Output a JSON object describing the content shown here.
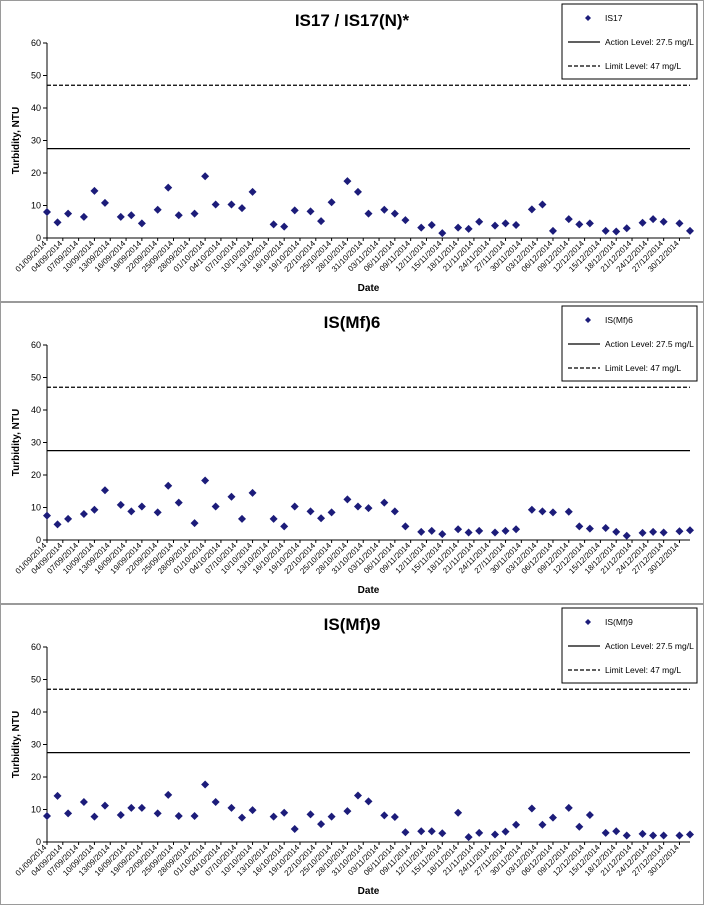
{
  "colors": {
    "marker": "#1c1c7a",
    "line": "#000000"
  },
  "chart_data": [
    {
      "type": "scatter",
      "title": "IS17 / IS17(N)*",
      "xlabel": "Date",
      "ylabel": "Turbidity, NTU",
      "ylim": [
        0,
        60
      ],
      "yticks": [
        0,
        10,
        20,
        30,
        40,
        50,
        60
      ],
      "grid": false,
      "legend_position": "top-right",
      "x_tick_labels": [
        "01/09/2014",
        "04/09/2014",
        "07/09/2014",
        "10/09/2014",
        "13/09/2014",
        "16/09/2014",
        "19/09/2014",
        "22/09/2014",
        "25/09/2014",
        "28/09/2014",
        "01/10/2014",
        "04/10/2014",
        "07/10/2014",
        "10/10/2014",
        "13/10/2014",
        "16/10/2014",
        "19/10/2014",
        "22/10/2014",
        "25/10/2014",
        "28/10/2014",
        "31/10/2014",
        "03/11/2014",
        "06/11/2014",
        "09/11/2014",
        "12/11/2014",
        "15/11/2014",
        "18/11/2014",
        "21/11/2014",
        "24/11/2014",
        "27/11/2014",
        "30/11/2014",
        "03/12/2014",
        "06/12/2014",
        "09/12/2014",
        "12/12/2014",
        "15/12/2014",
        "18/12/2014",
        "21/12/2014",
        "24/12/2014",
        "27/12/2014",
        "30/12/2014"
      ],
      "series": [
        {
          "name": "IS17",
          "x": [
            "01/09/2014",
            "03/09/2014",
            "05/09/2014",
            "08/09/2014",
            "10/09/2014",
            "12/09/2014",
            "15/09/2014",
            "17/09/2014",
            "19/09/2014",
            "22/09/2014",
            "24/09/2014",
            "26/09/2014",
            "29/09/2014",
            "01/10/2014",
            "03/10/2014",
            "06/10/2014",
            "08/10/2014",
            "10/10/2014",
            "14/10/2014",
            "16/10/2014",
            "18/10/2014",
            "21/10/2014",
            "23/10/2014",
            "25/10/2014",
            "28/10/2014",
            "30/10/2014",
            "01/11/2014",
            "04/11/2014",
            "06/11/2014",
            "08/11/2014",
            "11/11/2014",
            "13/11/2014",
            "15/11/2014",
            "18/11/2014",
            "20/11/2014",
            "22/11/2014",
            "25/11/2014",
            "27/11/2014",
            "29/11/2014",
            "02/12/2014",
            "04/12/2014",
            "06/12/2014",
            "09/12/2014",
            "11/12/2014",
            "13/12/2014",
            "16/12/2014",
            "18/12/2014",
            "20/12/2014",
            "23/12/2014",
            "25/12/2014",
            "27/12/2014",
            "30/12/2014",
            "01/01/2015"
          ],
          "y": [
            8,
            4.8,
            7.5,
            6.5,
            14.5,
            10.8,
            6.5,
            7,
            4.5,
            8.7,
            15.5,
            7,
            7.5,
            19,
            10.3,
            10.3,
            9.2,
            14.2,
            4.2,
            3.5,
            8.5,
            8.2,
            5.2,
            11,
            17.5,
            14.2,
            7.5,
            8.7,
            7.5,
            5.5,
            3.2,
            4,
            1.5,
            3.2,
            2.8,
            5,
            3.8,
            4.5,
            4,
            8.8,
            10.3,
            2.2,
            5.8,
            4.2,
            4.5,
            2.2,
            2,
            3,
            4.7,
            5.8,
            5,
            4.5,
            2.2
          ]
        }
      ],
      "reference_lines": [
        {
          "name": "Action Level: 27.5 mg/L",
          "y": 27.5,
          "style": "solid"
        },
        {
          "name": "Limit Level: 47 mg/L",
          "y": 47,
          "style": "dashed"
        }
      ]
    },
    {
      "type": "scatter",
      "title": "IS(Mf)6",
      "xlabel": "Date",
      "ylabel": "Turbidity, NTU",
      "ylim": [
        0,
        60
      ],
      "yticks": [
        0,
        10,
        20,
        30,
        40,
        50,
        60
      ],
      "grid": false,
      "legend_position": "top-right",
      "x_tick_labels": [
        "01/09/2014",
        "04/09/2014",
        "07/09/2014",
        "10/09/2014",
        "13/09/2014",
        "16/09/2014",
        "19/09/2014",
        "22/09/2014",
        "25/09/2014",
        "28/09/2014",
        "01/10/2014",
        "04/10/2014",
        "07/10/2014",
        "10/10/2014",
        "13/10/2014",
        "16/10/2014",
        "19/10/2014",
        "22/10/2014",
        "25/10/2014",
        "28/10/2014",
        "31/10/2014",
        "03/11/2014",
        "06/11/2014",
        "09/11/2014",
        "12/11/2014",
        "15/11/2014",
        "18/11/2014",
        "21/11/2014",
        "24/11/2014",
        "27/11/2014",
        "30/11/2014",
        "03/12/2014",
        "06/12/2014",
        "09/12/2014",
        "12/12/2014",
        "15/12/2014",
        "18/12/2014",
        "21/12/2014",
        "24/12/2014",
        "27/12/2014",
        "30/12/2014"
      ],
      "series": [
        {
          "name": "IS(Mf)6",
          "x": [
            "01/09/2014",
            "03/09/2014",
            "05/09/2014",
            "08/09/2014",
            "10/09/2014",
            "12/09/2014",
            "15/09/2014",
            "17/09/2014",
            "19/09/2014",
            "22/09/2014",
            "24/09/2014",
            "26/09/2014",
            "29/09/2014",
            "01/10/2014",
            "03/10/2014",
            "06/10/2014",
            "08/10/2014",
            "10/10/2014",
            "14/10/2014",
            "16/10/2014",
            "18/10/2014",
            "21/10/2014",
            "23/10/2014",
            "25/10/2014",
            "28/10/2014",
            "30/10/2014",
            "01/11/2014",
            "04/11/2014",
            "06/11/2014",
            "08/11/2014",
            "11/11/2014",
            "13/11/2014",
            "15/11/2014",
            "18/11/2014",
            "20/11/2014",
            "22/11/2014",
            "25/11/2014",
            "27/11/2014",
            "29/11/2014",
            "02/12/2014",
            "04/12/2014",
            "06/12/2014",
            "09/12/2014",
            "11/12/2014",
            "13/12/2014",
            "16/12/2014",
            "18/12/2014",
            "20/12/2014",
            "23/12/2014",
            "25/12/2014",
            "27/12/2014",
            "30/12/2014",
            "01/01/2015"
          ],
          "y": [
            7.5,
            4.8,
            6.5,
            8,
            9.3,
            15.3,
            10.8,
            8.8,
            10.3,
            8.5,
            16.7,
            11.5,
            5.2,
            18.3,
            10.3,
            13.3,
            6.5,
            14.5,
            6.5,
            4.2,
            10.3,
            8.8,
            6.7,
            8.5,
            12.5,
            10.3,
            9.8,
            11.5,
            8.8,
            4.2,
            2.5,
            2.8,
            1.8,
            3.3,
            2.3,
            2.8,
            2.3,
            2.8,
            3.3,
            9.3,
            8.8,
            8.5,
            8.7,
            4.2,
            3.5,
            3.7,
            2.5,
            1.3,
            2.2,
            2.5,
            2.3,
            2.7,
            3
          ]
        }
      ],
      "reference_lines": [
        {
          "name": "Action Level: 27.5 mg/L",
          "y": 27.5,
          "style": "solid"
        },
        {
          "name": "Limit Level: 47 mg/L",
          "y": 47,
          "style": "dashed"
        }
      ]
    },
    {
      "type": "scatter",
      "title": "IS(Mf)9",
      "xlabel": "Date",
      "ylabel": "Turbidity, NTU",
      "ylim": [
        0,
        60
      ],
      "yticks": [
        0,
        10,
        20,
        30,
        40,
        50,
        60
      ],
      "grid": false,
      "legend_position": "top-right",
      "x_tick_labels": [
        "01/09/2014",
        "04/09/2014",
        "07/09/2014",
        "10/09/2014",
        "13/09/2014",
        "16/09/2014",
        "19/09/2014",
        "22/09/2014",
        "25/09/2014",
        "28/09/2014",
        "01/10/2014",
        "04/10/2014",
        "07/10/2014",
        "10/10/2014",
        "13/10/2014",
        "16/10/2014",
        "19/10/2014",
        "22/10/2014",
        "25/10/2014",
        "28/10/2014",
        "31/10/2014",
        "03/11/2014",
        "06/11/2014",
        "09/11/2014",
        "12/11/2014",
        "15/11/2014",
        "18/11/2014",
        "21/11/2014",
        "24/11/2014",
        "27/11/2014",
        "30/11/2014",
        "03/12/2014",
        "06/12/2014",
        "09/12/2014",
        "12/12/2014",
        "15/12/2014",
        "18/12/2014",
        "21/12/2014",
        "24/12/2014",
        "27/12/2014",
        "30/12/2014"
      ],
      "series": [
        {
          "name": "IS(Mf)9",
          "x": [
            "01/09/2014",
            "03/09/2014",
            "05/09/2014",
            "08/09/2014",
            "10/09/2014",
            "12/09/2014",
            "15/09/2014",
            "17/09/2014",
            "19/09/2014",
            "22/09/2014",
            "24/09/2014",
            "26/09/2014",
            "29/09/2014",
            "01/10/2014",
            "03/10/2014",
            "06/10/2014",
            "08/10/2014",
            "10/10/2014",
            "14/10/2014",
            "16/10/2014",
            "18/10/2014",
            "21/10/2014",
            "23/10/2014",
            "25/10/2014",
            "28/10/2014",
            "30/10/2014",
            "01/11/2014",
            "04/11/2014",
            "06/11/2014",
            "08/11/2014",
            "11/11/2014",
            "13/11/2014",
            "15/11/2014",
            "18/11/2014",
            "20/11/2014",
            "22/11/2014",
            "25/11/2014",
            "27/11/2014",
            "29/11/2014",
            "02/12/2014",
            "04/12/2014",
            "06/12/2014",
            "09/12/2014",
            "11/12/2014",
            "13/12/2014",
            "16/12/2014",
            "18/12/2014",
            "20/12/2014",
            "23/12/2014",
            "25/12/2014",
            "27/12/2014",
            "30/12/2014",
            "01/01/2015"
          ],
          "y": [
            8,
            14.2,
            8.8,
            12.3,
            7.8,
            11.2,
            8.3,
            10.5,
            10.5,
            8.8,
            14.5,
            8,
            8,
            17.7,
            12.3,
            10.5,
            7.5,
            9.8,
            7.8,
            9,
            4,
            8.5,
            5.5,
            7.8,
            9.5,
            14.3,
            12.5,
            8.2,
            7.7,
            3,
            3.3,
            3.3,
            2.7,
            9,
            1.5,
            2.8,
            2.3,
            3.2,
            5.3,
            10.3,
            5.3,
            7.5,
            10.5,
            4.7,
            8.3,
            2.8,
            3.3,
            2,
            2.5,
            2,
            2,
            2,
            2.3
          ]
        }
      ],
      "reference_lines": [
        {
          "name": "Action Level: 27.5 mg/L",
          "y": 27.5,
          "style": "solid"
        },
        {
          "name": "Limit Level: 47 mg/L",
          "y": 47,
          "style": "dashed"
        }
      ]
    }
  ]
}
